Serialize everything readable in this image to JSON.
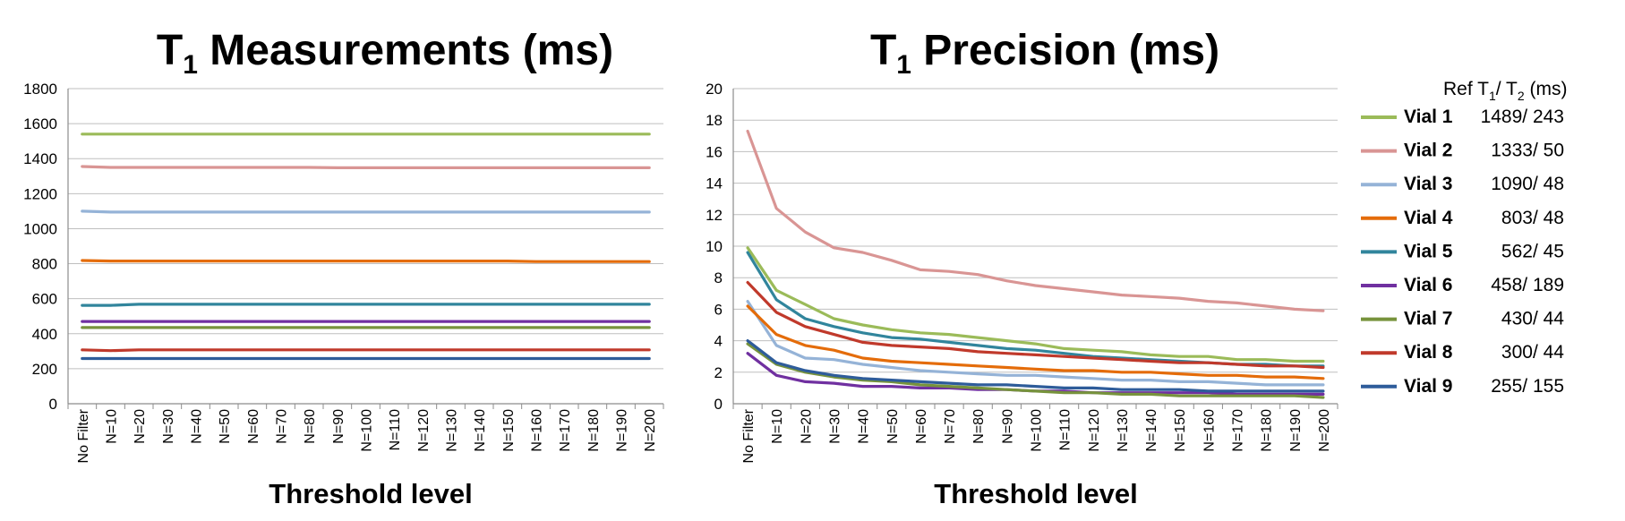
{
  "chart_data": [
    {
      "type": "line",
      "title": "T",
      "title_sub": "1",
      "title_rest": " Measurements (ms)",
      "xlabel": "Threshold level",
      "ylabel": "",
      "ylim": [
        0,
        1800
      ],
      "yticks": [
        0,
        200,
        400,
        600,
        800,
        1000,
        1200,
        1400,
        1600,
        1800
      ],
      "grid": true,
      "categories": [
        "No Filter",
        "N=10",
        "N=20",
        "N=30",
        "N=40",
        "N=50",
        "N=60",
        "N=70",
        "N=80",
        "N=90",
        "N=100",
        "N=110",
        "N=120",
        "N=130",
        "N=140",
        "N=150",
        "N=160",
        "N=170",
        "N=180",
        "N=190",
        "N=200"
      ],
      "series": [
        {
          "name": "Vial 1",
          "color": "#9bbb59",
          "values": [
            1540,
            1540,
            1540,
            1540,
            1540,
            1540,
            1540,
            1540,
            1540,
            1540,
            1540,
            1540,
            1540,
            1540,
            1540,
            1540,
            1540,
            1540,
            1540,
            1540,
            1540
          ]
        },
        {
          "name": "Vial 2",
          "color": "#d99594",
          "values": [
            1355,
            1350,
            1350,
            1350,
            1350,
            1350,
            1350,
            1350,
            1350,
            1348,
            1348,
            1348,
            1348,
            1348,
            1348,
            1348,
            1348,
            1348,
            1348,
            1348,
            1348
          ]
        },
        {
          "name": "Vial 3",
          "color": "#95b3d7",
          "values": [
            1100,
            1095,
            1095,
            1095,
            1095,
            1095,
            1095,
            1095,
            1095,
            1095,
            1095,
            1095,
            1095,
            1095,
            1095,
            1095,
            1095,
            1095,
            1095,
            1095,
            1095
          ]
        },
        {
          "name": "Vial 4",
          "color": "#e46c0a",
          "values": [
            818,
            815,
            815,
            815,
            815,
            815,
            815,
            815,
            815,
            815,
            815,
            815,
            815,
            815,
            815,
            815,
            812,
            812,
            812,
            812,
            812
          ]
        },
        {
          "name": "Vial 5",
          "color": "#31859c",
          "values": [
            562,
            562,
            568,
            568,
            568,
            568,
            568,
            568,
            568,
            568,
            568,
            568,
            568,
            568,
            568,
            568,
            568,
            568,
            568,
            568,
            568
          ]
        },
        {
          "name": "Vial 6",
          "color": "#7030a0",
          "values": [
            470,
            470,
            470,
            470,
            470,
            470,
            470,
            470,
            470,
            470,
            470,
            470,
            470,
            470,
            470,
            470,
            470,
            470,
            470,
            470,
            470
          ]
        },
        {
          "name": "Vial 7",
          "color": "#77933c",
          "values": [
            435,
            435,
            435,
            435,
            435,
            435,
            435,
            435,
            435,
            435,
            435,
            435,
            435,
            435,
            435,
            435,
            435,
            435,
            435,
            435,
            435
          ]
        },
        {
          "name": "Vial 8",
          "color": "#c0392b",
          "values": [
            308,
            303,
            308,
            308,
            308,
            308,
            308,
            308,
            308,
            308,
            308,
            308,
            308,
            308,
            308,
            308,
            308,
            308,
            308,
            308,
            308
          ]
        },
        {
          "name": "Vial 9",
          "color": "#2e5c9a",
          "values": [
            258,
            258,
            258,
            258,
            258,
            258,
            258,
            258,
            258,
            258,
            258,
            258,
            258,
            258,
            258,
            258,
            258,
            258,
            258,
            258,
            258
          ]
        }
      ]
    },
    {
      "type": "line",
      "title": "T",
      "title_sub": "1",
      "title_rest": " Precision (ms)",
      "xlabel": "Threshold level",
      "ylabel": "",
      "ylim": [
        0,
        20
      ],
      "yticks": [
        0,
        2,
        4,
        6,
        8,
        10,
        12,
        14,
        16,
        18,
        20
      ],
      "grid": true,
      "categories": [
        "No Filter",
        "N=10",
        "N=20",
        "N=30",
        "N=40",
        "N=50",
        "N=60",
        "N=70",
        "N=80",
        "N=90",
        "N=100",
        "N=110",
        "N=120",
        "N=130",
        "N=140",
        "N=150",
        "N=160",
        "N=170",
        "N=180",
        "N=190",
        "N=200"
      ],
      "series": [
        {
          "name": "Vial 1",
          "color": "#9bbb59",
          "values": [
            9.9,
            7.2,
            6.3,
            5.4,
            5.0,
            4.7,
            4.5,
            4.4,
            4.2,
            4.0,
            3.8,
            3.5,
            3.4,
            3.3,
            3.1,
            3.0,
            3.0,
            2.8,
            2.8,
            2.7,
            2.7
          ]
        },
        {
          "name": "Vial 2",
          "color": "#d99594",
          "values": [
            17.3,
            12.4,
            10.9,
            9.9,
            9.6,
            9.1,
            8.5,
            8.4,
            8.2,
            7.8,
            7.5,
            7.3,
            7.1,
            6.9,
            6.8,
            6.7,
            6.5,
            6.4,
            6.2,
            6.0,
            5.9
          ]
        },
        {
          "name": "Vial 3",
          "color": "#95b3d7",
          "values": [
            6.5,
            3.7,
            2.9,
            2.8,
            2.5,
            2.3,
            2.1,
            2.0,
            1.9,
            1.8,
            1.8,
            1.7,
            1.6,
            1.5,
            1.5,
            1.4,
            1.4,
            1.3,
            1.2,
            1.2,
            1.2
          ]
        },
        {
          "name": "Vial 4",
          "color": "#e46c0a",
          "values": [
            6.2,
            4.4,
            3.7,
            3.4,
            2.9,
            2.7,
            2.6,
            2.5,
            2.4,
            2.3,
            2.2,
            2.1,
            2.1,
            2.0,
            2.0,
            1.9,
            1.8,
            1.8,
            1.7,
            1.7,
            1.6
          ]
        },
        {
          "name": "Vial 5",
          "color": "#31859c",
          "values": [
            9.6,
            6.6,
            5.4,
            4.9,
            4.5,
            4.2,
            4.1,
            3.9,
            3.7,
            3.5,
            3.4,
            3.2,
            3.0,
            2.9,
            2.8,
            2.7,
            2.6,
            2.5,
            2.5,
            2.4,
            2.4
          ]
        },
        {
          "name": "Vial 6",
          "color": "#7030a0",
          "values": [
            3.2,
            1.8,
            1.4,
            1.3,
            1.1,
            1.1,
            1.0,
            1.0,
            0.9,
            0.9,
            0.8,
            0.8,
            0.7,
            0.7,
            0.7,
            0.7,
            0.7,
            0.6,
            0.6,
            0.6,
            0.6
          ]
        },
        {
          "name": "Vial 7",
          "color": "#77933c",
          "values": [
            3.8,
            2.5,
            2.0,
            1.7,
            1.5,
            1.4,
            1.2,
            1.1,
            1.0,
            0.9,
            0.8,
            0.7,
            0.7,
            0.6,
            0.6,
            0.5,
            0.5,
            0.5,
            0.5,
            0.5,
            0.4
          ]
        },
        {
          "name": "Vial 8",
          "color": "#c0392b",
          "values": [
            7.7,
            5.8,
            4.9,
            4.4,
            3.9,
            3.7,
            3.6,
            3.5,
            3.3,
            3.2,
            3.1,
            3.0,
            2.9,
            2.8,
            2.7,
            2.6,
            2.6,
            2.5,
            2.4,
            2.4,
            2.3
          ]
        },
        {
          "name": "Vial 9",
          "color": "#2e5c9a",
          "values": [
            4.0,
            2.6,
            2.1,
            1.8,
            1.6,
            1.5,
            1.4,
            1.3,
            1.2,
            1.2,
            1.1,
            1.0,
            1.0,
            0.9,
            0.9,
            0.9,
            0.8,
            0.8,
            0.8,
            0.8,
            0.8
          ]
        }
      ]
    }
  ],
  "legend": {
    "header_pre": "Ref T",
    "header_sub1": "1",
    "header_mid": "/ T",
    "header_sub2": "2",
    "header_post": " (ms)",
    "items": [
      {
        "name": "Vial 1",
        "ref": "1489/ 243",
        "color": "#9bbb59"
      },
      {
        "name": "Vial 2",
        "ref": "1333/ 50",
        "color": "#d99594"
      },
      {
        "name": "Vial 3",
        "ref": "1090/ 48",
        "color": "#95b3d7"
      },
      {
        "name": "Vial 4",
        "ref": "803/ 48",
        "color": "#e46c0a"
      },
      {
        "name": "Vial 5",
        "ref": "562/ 45",
        "color": "#31859c"
      },
      {
        "name": "Vial 6",
        "ref": "458/ 189",
        "color": "#7030a0"
      },
      {
        "name": "Vial 7",
        "ref": "430/ 44",
        "color": "#77933c"
      },
      {
        "name": "Vial 8",
        "ref": "300/ 44",
        "color": "#c0392b"
      },
      {
        "name": "Vial 9",
        "ref": "255/ 155",
        "color": "#2e5c9a"
      }
    ]
  }
}
